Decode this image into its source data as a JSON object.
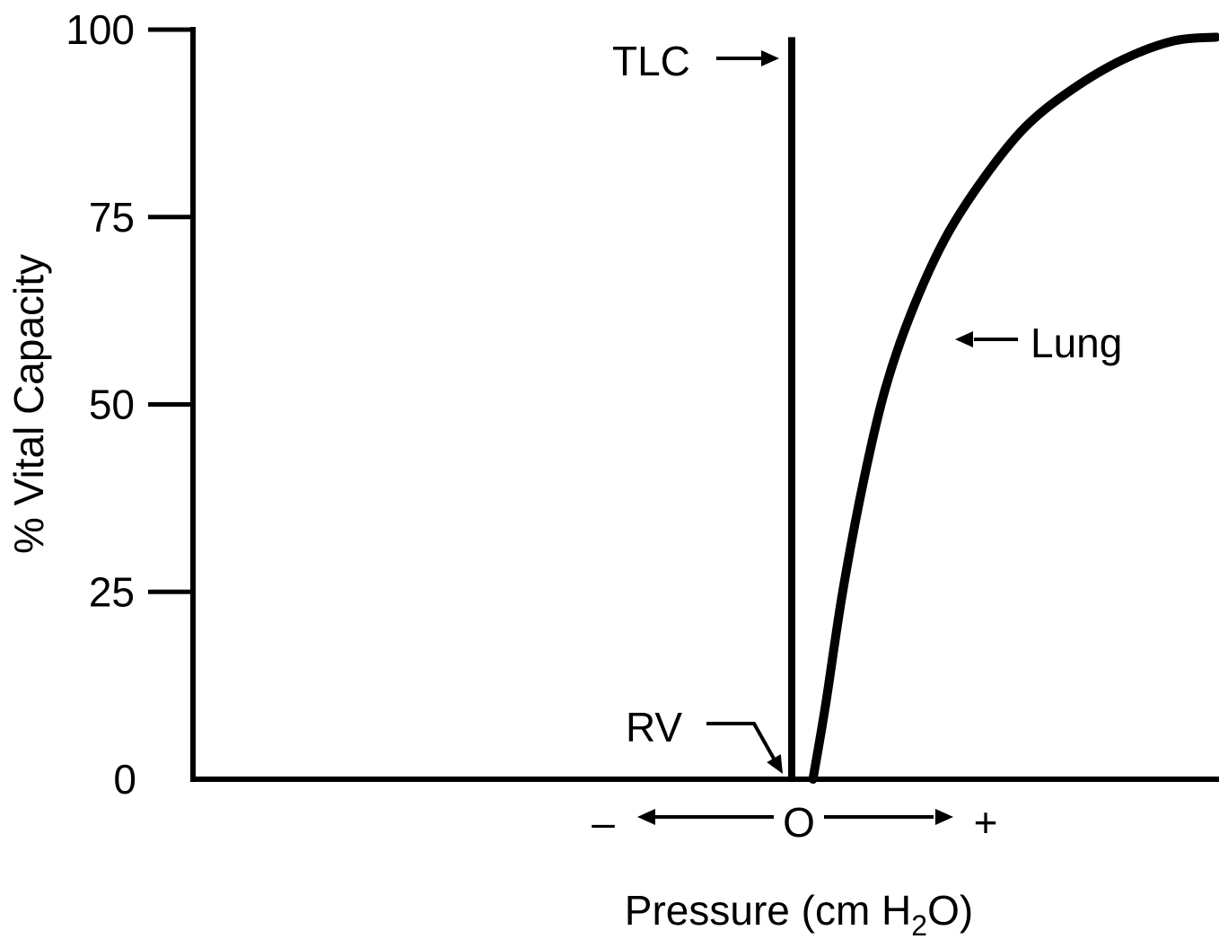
{
  "chart_data": {
    "type": "line",
    "ylabel": "% Vital Capacity",
    "xlabel": "Pressure (cm H",
    "xlabel_sub": "2",
    "xlabel_end": "O)",
    "ylim": [
      0,
      100
    ],
    "yticks": [
      "0",
      "25",
      "50",
      "75",
      "100"
    ],
    "ytick_values": [
      0,
      25,
      50,
      75,
      100
    ],
    "x_origin_label": "O",
    "x_negative_label": "–",
    "x_positive_label": "+",
    "grid": false,
    "annotations": {
      "tlc": "TLC",
      "rv": "RV",
      "lung": "Lung"
    },
    "series": [
      {
        "name": "Lung",
        "note": "pressure in relative units (0 = zero pressure, 1 = right edge of plot)",
        "x": [
          0.05,
          0.08,
          0.12,
          0.17,
          0.22,
          0.28,
          0.36,
          0.45,
          0.55,
          0.66,
          0.78,
          0.9,
          1.0
        ],
        "y": [
          0,
          10,
          25,
          40,
          52,
          62,
          72,
          80,
          87,
          92,
          96,
          98.5,
          99
        ]
      }
    ],
    "tlc_line": {
      "x": 0,
      "y": [
        0,
        99
      ]
    }
  },
  "colors": {
    "ink": "#000000",
    "background": "#ffffff"
  }
}
